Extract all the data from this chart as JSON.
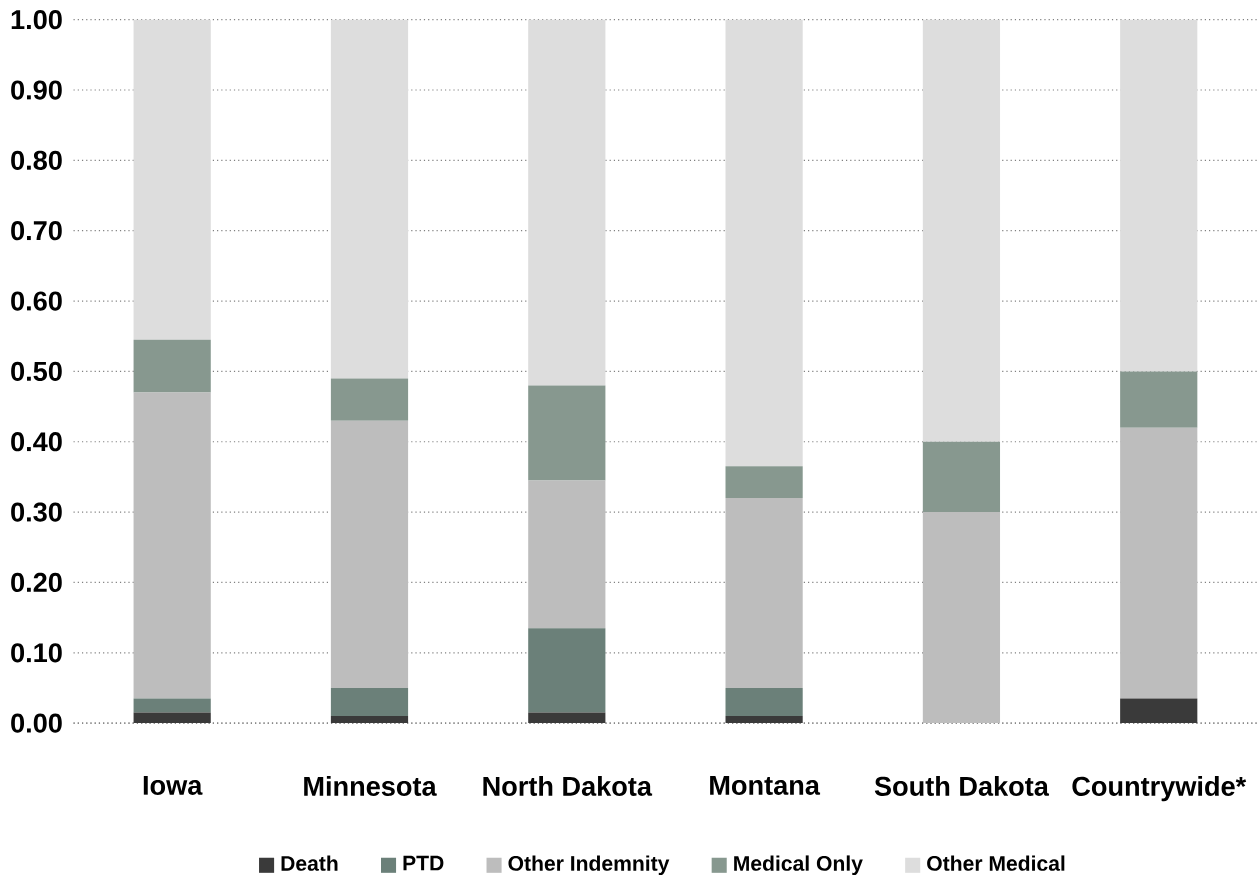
{
  "chart_data": {
    "type": "bar",
    "stacked": true,
    "categories": [
      "Iowa",
      "Minnesota",
      "North Dakota",
      "Montana",
      "South Dakota",
      "Countrywide*"
    ],
    "series": [
      {
        "name": "Death",
        "color": "#3a3a3a",
        "values": [
          0.015,
          0.01,
          0.015,
          0.01,
          0,
          0.035
        ]
      },
      {
        "name": "PTD",
        "color": "#6b8079",
        "values": [
          0.02,
          0.04,
          0.12,
          0.04,
          0,
          0
        ]
      },
      {
        "name": "Other Indemnity",
        "color": "#bdbdbd",
        "values": [
          0.435,
          0.38,
          0.21,
          0.27,
          0.3,
          0.385
        ]
      },
      {
        "name": "Medical Only",
        "color": "#87988f",
        "values": [
          0.075,
          0.06,
          0.135,
          0.045,
          0.1,
          0.08
        ]
      },
      {
        "name": "Other Medical",
        "color": "#dddddd",
        "values": [
          0.455,
          0.51,
          0.52,
          0.635,
          0.6,
          0.5
        ]
      }
    ],
    "ylim": [
      0,
      1
    ],
    "yticks": [
      {
        "value": 0,
        "label": "0.00"
      },
      {
        "value": 0.1,
        "label": "0.10"
      },
      {
        "value": 0.2,
        "label": "0.20"
      },
      {
        "value": 0.3,
        "label": "0.30"
      },
      {
        "value": 0.4,
        "label": "0.40"
      },
      {
        "value": 0.5,
        "label": "0.50"
      },
      {
        "value": 0.6,
        "label": "0.60"
      },
      {
        "value": 0.7,
        "label": "0.70"
      },
      {
        "value": 0.8,
        "label": "0.80"
      },
      {
        "value": 0.9,
        "label": "0.90"
      },
      {
        "value": 1,
        "label": "1.00"
      }
    ],
    "grid": "y",
    "legend": "bottom"
  }
}
